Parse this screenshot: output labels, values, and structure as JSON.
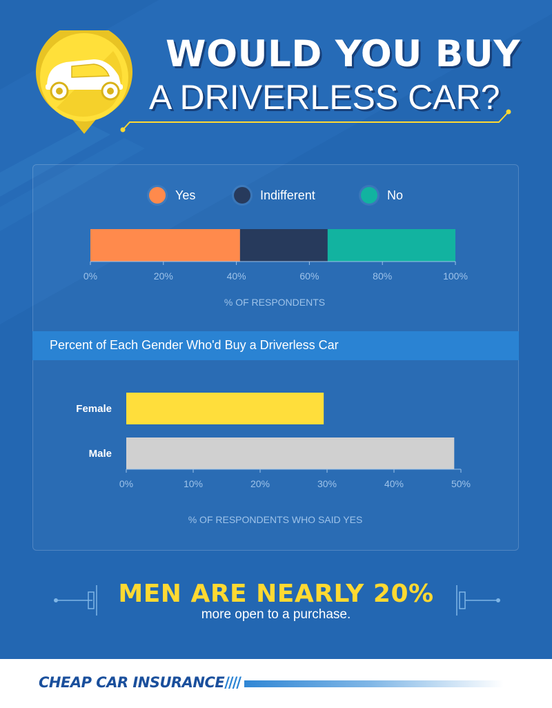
{
  "header": {
    "title_line1": "WOULD YOU BUY",
    "title_line2": "A DRIVERLESS CAR?"
  },
  "colors": {
    "background": "#2367b2",
    "yes": "#ff8a4c",
    "indifferent": "#273a5c",
    "no": "#12b3a0",
    "female": "#ffde3b",
    "male": "#d0d0d0",
    "accent_yellow": "#ffd932",
    "band": "#2a83d3"
  },
  "chart_data": [
    {
      "type": "bar",
      "orientation": "horizontal-stacked",
      "series": [
        {
          "name": "Yes",
          "values": [
            41
          ]
        },
        {
          "name": "Indifferent",
          "values": [
            24
          ]
        },
        {
          "name": "No",
          "values": [
            35
          ]
        }
      ],
      "xlabel": "% OF RESPONDENTS",
      "xlim": [
        0,
        100
      ],
      "xticks": [
        "0%",
        "20%",
        "40%",
        "60%",
        "80%",
        "100%"
      ],
      "legend": "top"
    },
    {
      "type": "bar",
      "orientation": "horizontal",
      "title": "Percent of Each Gender Who'd Buy a Driverless Car",
      "categories": [
        "Female",
        "Male"
      ],
      "values": [
        29.5,
        49
      ],
      "xlabel": "% OF RESPONDENTS WHO SAID YES",
      "xlim": [
        0,
        50
      ],
      "xticks": [
        "0%",
        "10%",
        "20%",
        "30%",
        "40%",
        "50%"
      ]
    }
  ],
  "conclusion": {
    "headline": "MEN ARE NEARLY 20%",
    "subtext": "more open to a purchase."
  },
  "footer": {
    "logo_text": "CHEAP CAR INSURANCE",
    "logo_mark": "////"
  },
  "icons": {
    "header_icon": "car-icon",
    "pin": "map-pin-icon"
  }
}
